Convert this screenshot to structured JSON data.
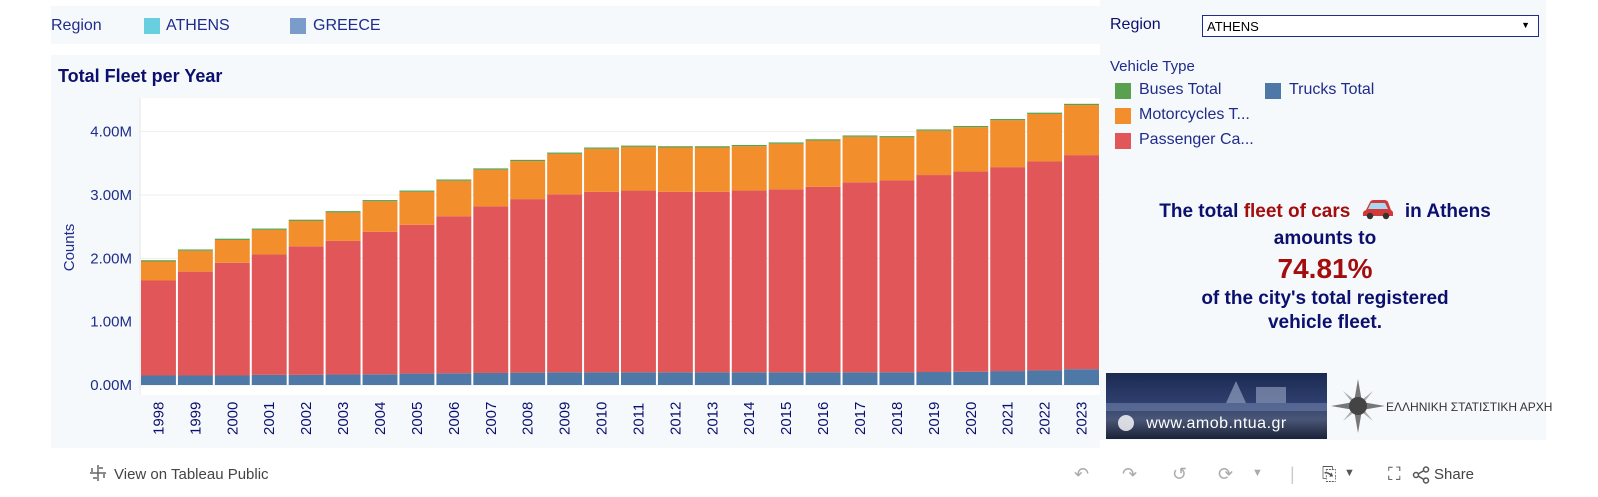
{
  "top_legend": {
    "label": "Region",
    "items": [
      {
        "name": "ATHENS",
        "color": "#68cfdf"
      },
      {
        "name": "GREECE",
        "color": "#7a9ccb"
      }
    ]
  },
  "chart_title": "Total Fleet per Year",
  "filter": {
    "label": "Region",
    "value": "ATHENS"
  },
  "vehicle_legend": {
    "title": "Vehicle Type",
    "items": [
      {
        "name": "Buses Total",
        "color": "#59a14f"
      },
      {
        "name": "Trucks Total",
        "color": "#4e79a7"
      },
      {
        "name": "Motorcycles T...",
        "color": "#f28e2b"
      },
      {
        "name": "Passenger Ca...",
        "color": "#e15759"
      }
    ]
  },
  "message": {
    "part1": "The total",
    "highlight": "fleet of cars",
    "part2": "in Athens",
    "line2": "amounts to",
    "percent": "74.81%",
    "line3": "of the city's total registered",
    "line4": "vehicle fleet."
  },
  "banner": {
    "url": "www.amob.ntua.gr",
    "elstat": "ΕΛΛΗΝΙΚΗ ΣΤΑΤΙΣΤΙΚΗ ΑΡΧΗ"
  },
  "toolbar": {
    "view_link": "View on Tableau Public",
    "share": "Share"
  },
  "chart_data": {
    "type": "bar",
    "stacked": true,
    "title": "Total Fleet per Year",
    "xlabel": "",
    "ylabel": "Counts",
    "ylim": [
      0,
      4500000
    ],
    "yticks": [
      0,
      1000000,
      2000000,
      3000000,
      4000000
    ],
    "ytick_labels": [
      "0.00M",
      "1.00M",
      "2.00M",
      "3.00M",
      "4.00M"
    ],
    "categories": [
      "1998",
      "1999",
      "2000",
      "2001",
      "2002",
      "2003",
      "2004",
      "2005",
      "2006",
      "2007",
      "2008",
      "2009",
      "2010",
      "2011",
      "2012",
      "2013",
      "2014",
      "2015",
      "2016",
      "2017",
      "2018",
      "2019",
      "2020",
      "2021",
      "2022",
      "2023"
    ],
    "series": [
      {
        "name": "Trucks Total",
        "color": "#4e79a7",
        "values": [
          150000,
          150000,
          150000,
          160000,
          160000,
          165000,
          170000,
          180000,
          185000,
          190000,
          195000,
          200000,
          200000,
          200000,
          200000,
          200000,
          200000,
          200000,
          200000,
          200000,
          200000,
          205000,
          210000,
          220000,
          230000,
          250000
        ]
      },
      {
        "name": "Passenger Cars Total",
        "color": "#e15759",
        "values": [
          1500000,
          1640000,
          1780000,
          1900000,
          2030000,
          2110000,
          2250000,
          2350000,
          2480000,
          2630000,
          2740000,
          2810000,
          2850000,
          2870000,
          2850000,
          2850000,
          2870000,
          2890000,
          2930000,
          3000000,
          3030000,
          3110000,
          3160000,
          3220000,
          3300000,
          3380000
        ]
      },
      {
        "name": "Motorcycles Total",
        "color": "#f28e2b",
        "values": [
          300000,
          330000,
          360000,
          390000,
          400000,
          450000,
          480000,
          520000,
          560000,
          580000,
          600000,
          640000,
          680000,
          690000,
          700000,
          700000,
          700000,
          720000,
          730000,
          720000,
          680000,
          700000,
          700000,
          740000,
          750000,
          790000
        ]
      },
      {
        "name": "Buses Total",
        "color": "#59a14f",
        "values": [
          20000,
          20000,
          20000,
          20000,
          20000,
          20000,
          20000,
          20000,
          20000,
          20000,
          20000,
          20000,
          20000,
          20000,
          20000,
          20000,
          20000,
          20000,
          20000,
          20000,
          20000,
          20000,
          20000,
          20000,
          20000,
          20000
        ]
      }
    ],
    "legend": "right"
  }
}
